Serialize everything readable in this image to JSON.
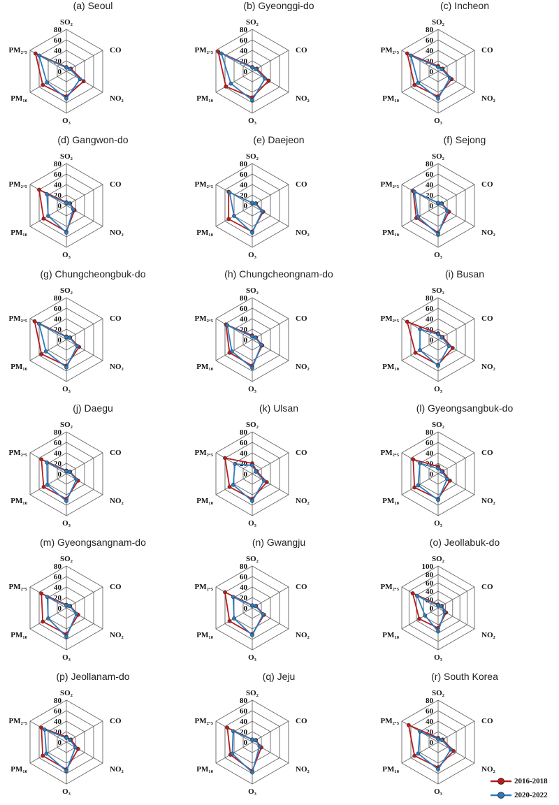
{
  "colors": {
    "series_2016_2018": "#b81c1c",
    "series_2020_2022": "#2b7bbf",
    "grid": "#666666"
  },
  "legend": {
    "items": [
      "2016-2018",
      "2020-2022"
    ]
  },
  "chart_data": [
    {
      "type": "radar",
      "title": "(a) Seoul",
      "axes": [
        "SO₂",
        "CO",
        "NO₂",
        "O₃",
        "PM₁₀",
        "PM₂.₅"
      ],
      "rticks": [
        "0",
        "20",
        "40",
        "60",
        "80"
      ],
      "rmax": 80,
      "series": [
        {
          "name": "2016-2018",
          "values": [
            8,
            10,
            38,
            48,
            52,
            68
          ]
        },
        {
          "name": "2020-2022",
          "values": [
            7,
            8,
            30,
            52,
            43,
            60
          ]
        }
      ]
    },
    {
      "type": "radar",
      "title": "(b) Gyeonggi-do",
      "axes": [
        "SO₂",
        "CO",
        "NO₂",
        "O₃",
        "PM₁₀",
        "PM₂.₅"
      ],
      "rticks": [
        "0",
        "20",
        "40",
        "60",
        "80"
      ],
      "rmax": 80,
      "series": [
        {
          "name": "2016-2018",
          "values": [
            8,
            10,
            36,
            50,
            58,
            75
          ]
        },
        {
          "name": "2020-2022",
          "values": [
            7,
            8,
            28,
            55,
            47,
            68
          ]
        }
      ]
    },
    {
      "type": "radar",
      "title": "(c) Incheon",
      "axes": [
        "SO₂",
        "CO",
        "NO₂",
        "O₃",
        "PM₁₀",
        "PM₂.₅"
      ],
      "rticks": [
        "0",
        "20",
        "40",
        "60",
        "80"
      ],
      "rmax": 80,
      "series": [
        {
          "name": "2016-2018",
          "values": [
            10,
            10,
            30,
            48,
            52,
            68
          ]
        },
        {
          "name": "2020-2022",
          "values": [
            8,
            8,
            26,
            52,
            44,
            60
          ]
        }
      ]
    },
    {
      "type": "radar",
      "title": "(d) Gangwon-do",
      "axes": [
        "SO₂",
        "CO",
        "NO₂",
        "O₃",
        "PM₁₀",
        "PM₂.₅"
      ],
      "rticks": [
        "0",
        "20",
        "40",
        "60",
        "80"
      ],
      "rmax": 80,
      "series": [
        {
          "name": "2016-2018",
          "values": [
            6,
            8,
            18,
            50,
            50,
            60
          ]
        },
        {
          "name": "2020-2022",
          "values": [
            5,
            7,
            15,
            52,
            40,
            43
          ]
        }
      ]
    },
    {
      "type": "radar",
      "title": "(e) Daejeon",
      "axes": [
        "SO₂",
        "CO",
        "NO₂",
        "O₃",
        "PM₁₀",
        "PM₂.₅"
      ],
      "rticks": [
        "0",
        "20",
        "40",
        "60",
        "80"
      ],
      "rmax": 80,
      "series": [
        {
          "name": "2016-2018",
          "values": [
            5,
            8,
            24,
            50,
            52,
            52
          ]
        },
        {
          "name": "2020-2022",
          "values": [
            5,
            7,
            22,
            52,
            40,
            50
          ]
        }
      ]
    },
    {
      "type": "radar",
      "title": "(f) Sejong",
      "axes": [
        "SO₂",
        "CO",
        "NO₂",
        "O₃",
        "PM₁₀",
        "PM₂.₅"
      ],
      "rticks": [
        "0",
        "20",
        "40",
        "60",
        "80"
      ],
      "rmax": 80,
      "series": [
        {
          "name": "2016-2018",
          "values": [
            5,
            8,
            24,
            52,
            48,
            55
          ]
        },
        {
          "name": "2020-2022",
          "values": [
            5,
            7,
            20,
            55,
            44,
            52
          ]
        }
      ]
    },
    {
      "type": "radar",
      "title": "(g) Chungcheongbuk-do",
      "axes": [
        "SO₂",
        "CO",
        "NO₂",
        "O₃",
        "PM₁₀",
        "PM₂.₅"
      ],
      "rticks": [
        "0",
        "20",
        "40",
        "60",
        "80"
      ],
      "rmax": 80,
      "series": [
        {
          "name": "2016-2018",
          "values": [
            6,
            8,
            28,
            50,
            55,
            70
          ]
        },
        {
          "name": "2020-2022",
          "values": [
            5,
            7,
            24,
            53,
            45,
            60
          ]
        }
      ]
    },
    {
      "type": "radar",
      "title": "(h) Chungcheongnam-do",
      "axes": [
        "SO₂",
        "CO",
        "NO₂",
        "O₃",
        "PM₁₀",
        "PM₂.₅"
      ],
      "rticks": [
        "0",
        "20",
        "40",
        "60",
        "80"
      ],
      "rmax": 80,
      "series": [
        {
          "name": "2016-2018",
          "values": [
            8,
            8,
            22,
            50,
            50,
            58
          ]
        },
        {
          "name": "2020-2022",
          "values": [
            6,
            7,
            20,
            54,
            45,
            55
          ]
        }
      ]
    },
    {
      "type": "radar",
      "title": "(i) Busan",
      "axes": [
        "SO₂",
        "CO",
        "NO₂",
        "O₃",
        "PM₁₀",
        "PM₂.₅"
      ],
      "rticks": [
        "0",
        "20",
        "40",
        "60",
        "80"
      ],
      "rmax": 80,
      "series": [
        {
          "name": "2016-2018",
          "values": [
            12,
            10,
            32,
            48,
            50,
            68
          ]
        },
        {
          "name": "2020-2022",
          "values": [
            10,
            8,
            24,
            50,
            40,
            40
          ]
        }
      ]
    },
    {
      "type": "radar",
      "title": "(j) Daegu",
      "axes": [
        "SO₂",
        "CO",
        "NO₂",
        "O₃",
        "PM₁₀",
        "PM₂.₅"
      ],
      "rticks": [
        "0",
        "20",
        "40",
        "60",
        "80"
      ],
      "rmax": 80,
      "series": [
        {
          "name": "2016-2018",
          "values": [
            6,
            8,
            26,
            48,
            50,
            55
          ]
        },
        {
          "name": "2020-2022",
          "values": [
            5,
            7,
            22,
            52,
            42,
            43
          ]
        }
      ]
    },
    {
      "type": "radar",
      "title": "(k) Ulsan",
      "axes": [
        "SO₂",
        "CO",
        "NO₂",
        "O₃",
        "PM₁₀",
        "PM₂.₅"
      ],
      "rticks": [
        "0",
        "20",
        "40",
        "60",
        "80"
      ],
      "rmax": 80,
      "series": [
        {
          "name": "2016-2018",
          "values": [
            20,
            10,
            32,
            48,
            50,
            60
          ]
        },
        {
          "name": "2020-2022",
          "values": [
            16,
            8,
            26,
            52,
            42,
            38
          ]
        }
      ]
    },
    {
      "type": "radar",
      "title": "(l) Gyeongsangbuk-do",
      "axes": [
        "SO₂",
        "CO",
        "NO₂",
        "O₃",
        "PM₁₀",
        "PM₂.₅"
      ],
      "rticks": [
        "0",
        "20",
        "40",
        "60",
        "80"
      ],
      "rmax": 80,
      "series": [
        {
          "name": "2016-2018",
          "values": [
            14,
            10,
            26,
            48,
            52,
            55
          ]
        },
        {
          "name": "2020-2022",
          "values": [
            10,
            8,
            20,
            50,
            44,
            40
          ]
        }
      ]
    },
    {
      "type": "radar",
      "title": "(m) Gyeongsangnam-do",
      "axes": [
        "SO₂",
        "CO",
        "NO₂",
        "O₃",
        "PM₁₀",
        "PM₂.₅"
      ],
      "rticks": [
        "0",
        "20",
        "40",
        "60",
        "80"
      ],
      "rmax": 80,
      "series": [
        {
          "name": "2016-2018",
          "values": [
            6,
            8,
            26,
            50,
            52,
            55
          ]
        },
        {
          "name": "2020-2022",
          "values": [
            5,
            7,
            22,
            55,
            40,
            42
          ]
        }
      ]
    },
    {
      "type": "radar",
      "title": "(n) Gwangju",
      "axes": [
        "SO₂",
        "CO",
        "NO₂",
        "O₃",
        "PM₁₀",
        "PM₂.₅"
      ],
      "rticks": [
        "0",
        "20",
        "40",
        "60",
        "80"
      ],
      "rmax": 80,
      "series": [
        {
          "name": "2016-2018",
          "values": [
            5,
            8,
            26,
            50,
            50,
            60
          ]
        },
        {
          "name": "2020-2022",
          "values": [
            5,
            7,
            24,
            52,
            40,
            42
          ]
        }
      ]
    },
    {
      "type": "radar",
      "title": "(o) Jeollabuk-do",
      "axes": [
        "SO₂",
        "CO",
        "NO₂",
        "O₃",
        "PM₁₀",
        "PM₂.₅"
      ],
      "rticks": [
        "0",
        "20",
        "40",
        "60",
        "80",
        "100"
      ],
      "rmax": 100,
      "series": [
        {
          "name": "2016-2018",
          "values": [
            8,
            10,
            22,
            48,
            52,
            70
          ]
        },
        {
          "name": "2020-2022",
          "values": [
            6,
            8,
            18,
            56,
            36,
            58
          ]
        }
      ]
    },
    {
      "type": "radar",
      "title": "(p) Jeollanam-do",
      "axes": [
        "SO₂",
        "CO",
        "NO₂",
        "O₃",
        "PM₁₀",
        "PM₂.₅"
      ],
      "rticks": [
        "0",
        "20",
        "40",
        "60",
        "80"
      ],
      "rmax": 80,
      "series": [
        {
          "name": "2016-2018",
          "values": [
            10,
            10,
            26,
            52,
            52,
            55
          ]
        },
        {
          "name": "2020-2022",
          "values": [
            8,
            8,
            20,
            55,
            44,
            48
          ]
        }
      ]
    },
    {
      "type": "radar",
      "title": "(q) Jeju",
      "axes": [
        "SO₂",
        "CO",
        "NO₂",
        "O₃",
        "PM₁₀",
        "PM₂.₅"
      ],
      "rticks": [
        "0",
        "20",
        "40",
        "60",
        "80"
      ],
      "rmax": 80,
      "series": [
        {
          "name": "2016-2018",
          "values": [
            5,
            8,
            20,
            55,
            48,
            55
          ]
        },
        {
          "name": "2020-2022",
          "values": [
            5,
            7,
            16,
            58,
            44,
            42
          ]
        }
      ]
    },
    {
      "type": "radar",
      "title": "(r) South Korea",
      "axes": [
        "SO₂",
        "CO",
        "NO₂",
        "O₃",
        "PM₁₀",
        "PM₂.₅"
      ],
      "rticks": [
        "0",
        "20",
        "40",
        "60",
        "80"
      ],
      "rmax": 80,
      "series": [
        {
          "name": "2016-2018",
          "values": [
            8,
            10,
            34,
            48,
            52,
            65
          ]
        },
        {
          "name": "2020-2022",
          "values": [
            6,
            8,
            28,
            52,
            44,
            40
          ]
        }
      ]
    }
  ]
}
